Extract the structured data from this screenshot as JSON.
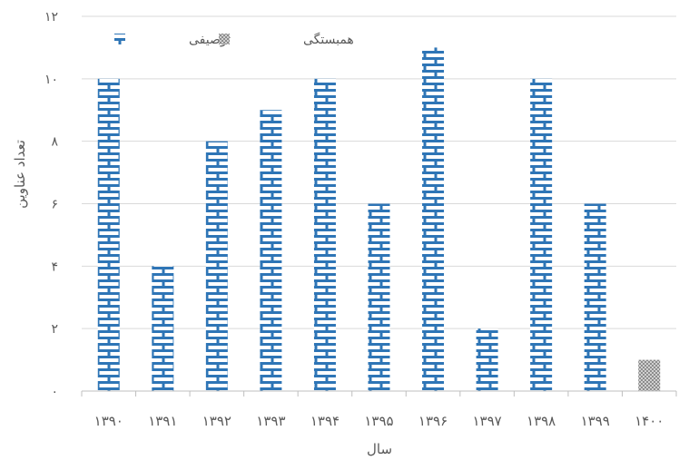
{
  "chart_data": {
    "type": "bar",
    "title": "",
    "xlabel": "سال",
    "ylabel": "تعداد عناوین",
    "categories": [
      "۱۳۹۰",
      "۱۳۹۱",
      "۱۳۹۲",
      "۱۳۹۳",
      "۱۳۹۴",
      "۱۳۹۵",
      "۱۳۹۶",
      "۱۳۹۷",
      "۱۳۹۸",
      "۱۳۹۹",
      "۱۴۰۰"
    ],
    "series": [
      {
        "name": "توصیفی",
        "values": [
          10,
          4,
          8,
          9,
          10,
          6,
          11,
          2,
          10,
          6,
          0
        ],
        "color": "#2e75b6",
        "pattern": "brick"
      },
      {
        "name": "همبستگی",
        "values": [
          0,
          0,
          0,
          0,
          0,
          0,
          0,
          0,
          0,
          0,
          1
        ],
        "color": "#a6a6a6",
        "pattern": "checker"
      }
    ],
    "stacked": true,
    "ylim": [
      0,
      12
    ],
    "yticks": [
      0,
      2,
      4,
      6,
      8,
      10,
      12
    ],
    "ytick_labels": [
      "۰",
      "۲",
      "۴",
      "۶",
      "۸",
      "۱۰",
      "۱۲"
    ],
    "grid": true,
    "legend_position": "top-left"
  }
}
